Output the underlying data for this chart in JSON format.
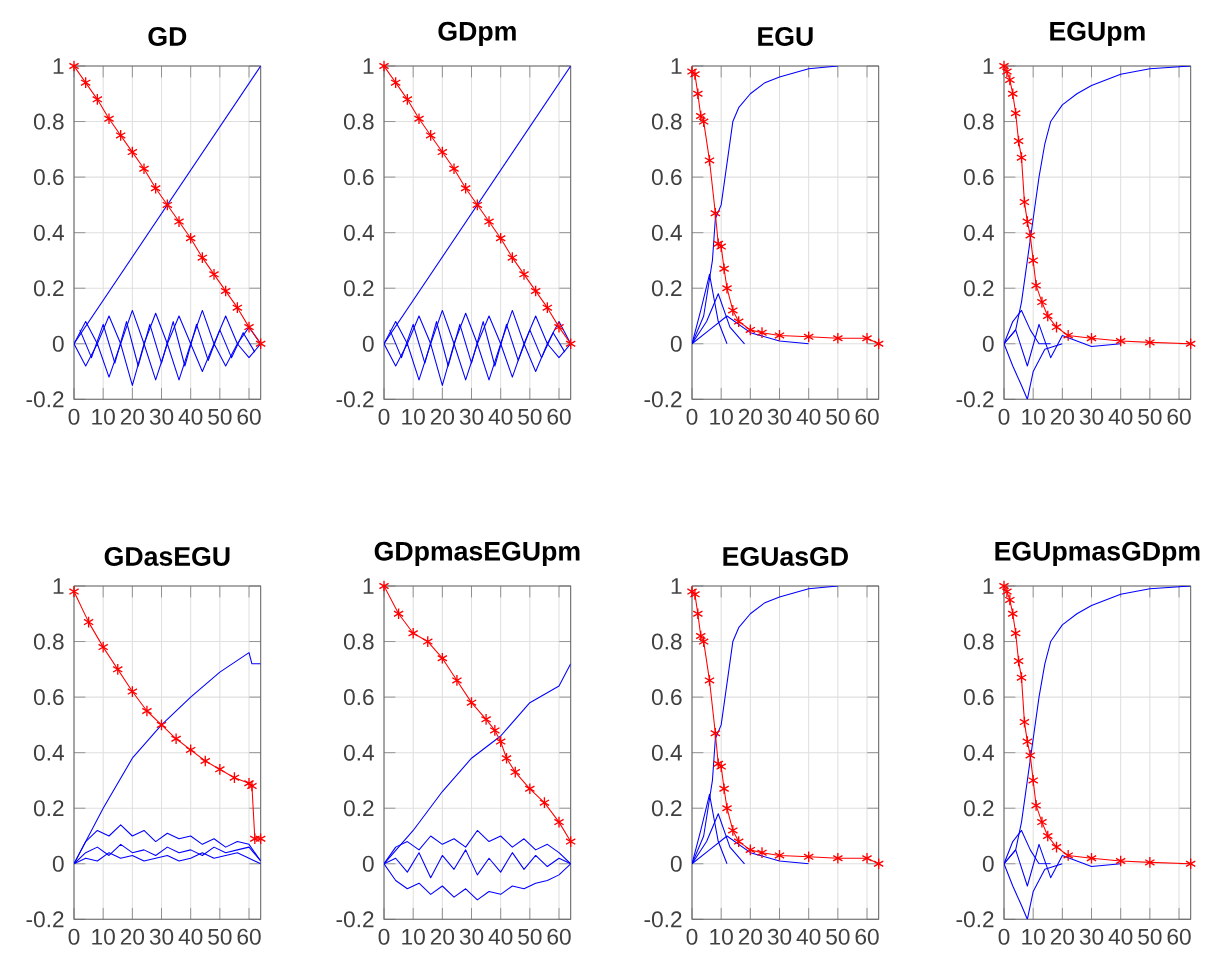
{
  "chart_data": [
    {
      "type": "line",
      "title": "GD",
      "xlim": [
        0,
        64
      ],
      "ylim": [
        -0.2,
        1
      ],
      "xticks": [
        0,
        10,
        20,
        30,
        40,
        50,
        60
      ],
      "yticks": [
        -0.2,
        0,
        0.2,
        0.4,
        0.6,
        0.8,
        1
      ],
      "grid": true,
      "series": [
        {
          "color": "#0000ff",
          "marker": "none",
          "x": [
            0,
            4,
            8,
            12,
            16,
            20,
            24,
            28,
            32,
            36,
            40,
            44,
            48,
            52,
            56,
            60,
            64
          ],
          "values": [
            0,
            0.08,
            0,
            0.1,
            0,
            0.12,
            0,
            0.11,
            0,
            0.1,
            0,
            0.12,
            0,
            0.1,
            0,
            0.06,
            0
          ]
        },
        {
          "color": "#0000ff",
          "marker": "none",
          "x": [
            0,
            4,
            8,
            12,
            16,
            20,
            24,
            28,
            32,
            36,
            40,
            44,
            48,
            52,
            56,
            60,
            64
          ],
          "values": [
            0,
            -0.08,
            0,
            -0.12,
            0,
            -0.15,
            0,
            -0.13,
            0,
            -0.13,
            0,
            -0.1,
            0,
            -0.08,
            0,
            -0.05,
            0
          ]
        },
        {
          "color": "#0000ff",
          "marker": "none",
          "x": [
            2,
            6,
            10,
            14,
            18,
            22,
            26,
            30,
            34,
            38,
            42,
            46,
            50,
            54,
            58,
            62
          ],
          "values": [
            0.05,
            -0.05,
            0.07,
            -0.07,
            0.08,
            -0.08,
            0.07,
            -0.07,
            0.08,
            -0.08,
            0.07,
            -0.06,
            0.05,
            -0.05,
            0.04,
            -0.03
          ]
        },
        {
          "color": "#0000ff",
          "marker": "none",
          "x": [
            0,
            64
          ],
          "values": [
            0,
            1
          ]
        },
        {
          "color": "#ff0000",
          "marker": "cross",
          "x": [
            0,
            4,
            8,
            12,
            16,
            20,
            24,
            28,
            32,
            36,
            40,
            44,
            48,
            52,
            56,
            60,
            64
          ],
          "values": [
            1,
            0.94,
            0.88,
            0.81,
            0.75,
            0.69,
            0.63,
            0.56,
            0.5,
            0.44,
            0.38,
            0.31,
            0.25,
            0.19,
            0.13,
            0.06,
            0
          ]
        }
      ]
    },
    {
      "type": "line",
      "title": "GDpm",
      "xlim": [
        0,
        64
      ],
      "ylim": [
        -0.2,
        1
      ],
      "xticks": [
        0,
        10,
        20,
        30,
        40,
        50,
        60
      ],
      "yticks": [
        -0.2,
        0,
        0.2,
        0.4,
        0.6,
        0.8,
        1
      ],
      "grid": true,
      "series": [
        {
          "color": "#0000ff",
          "marker": "none",
          "x": [
            0,
            4,
            8,
            12,
            16,
            20,
            24,
            28,
            32,
            36,
            40,
            44,
            48,
            52,
            56,
            60,
            64
          ],
          "values": [
            0,
            0.08,
            0,
            0.1,
            0,
            0.12,
            0,
            0.11,
            0,
            0.1,
            0,
            0.12,
            0,
            0.1,
            0,
            0.08,
            0
          ]
        },
        {
          "color": "#0000ff",
          "marker": "none",
          "x": [
            0,
            4,
            8,
            12,
            16,
            20,
            24,
            28,
            32,
            36,
            40,
            44,
            48,
            52,
            56,
            60,
            64
          ],
          "values": [
            0,
            -0.08,
            0,
            -0.13,
            0,
            -0.15,
            0,
            -0.13,
            0,
            -0.13,
            0,
            -0.12,
            0,
            -0.1,
            0,
            -0.05,
            0
          ]
        },
        {
          "color": "#0000ff",
          "marker": "none",
          "x": [
            2,
            6,
            10,
            14,
            18,
            22,
            26,
            30,
            34,
            38,
            42,
            46,
            50,
            54,
            58,
            62
          ],
          "values": [
            0.05,
            -0.05,
            0.07,
            -0.07,
            0.08,
            -0.08,
            0.07,
            -0.07,
            0.08,
            -0.08,
            0.07,
            -0.06,
            0.05,
            -0.05,
            0.04,
            -0.03
          ]
        },
        {
          "color": "#0000ff",
          "marker": "none",
          "x": [
            0,
            64
          ],
          "values": [
            0,
            1
          ]
        },
        {
          "color": "#ff0000",
          "marker": "cross",
          "x": [
            0,
            4,
            8,
            12,
            16,
            20,
            24,
            28,
            32,
            36,
            40,
            44,
            48,
            52,
            56,
            60,
            64
          ],
          "values": [
            1,
            0.94,
            0.88,
            0.81,
            0.75,
            0.69,
            0.63,
            0.56,
            0.5,
            0.44,
            0.38,
            0.31,
            0.25,
            0.19,
            0.13,
            0.06,
            0
          ]
        }
      ]
    },
    {
      "type": "line",
      "title": "EGU",
      "xlim": [
        0,
        64
      ],
      "ylim": [
        -0.2,
        1
      ],
      "xticks": [
        0,
        10,
        20,
        30,
        40,
        50,
        60
      ],
      "yticks": [
        -0.2,
        0,
        0.2,
        0.4,
        0.6,
        0.8,
        1
      ],
      "grid": true,
      "series": [
        {
          "color": "#0000ff",
          "marker": "none",
          "x": [
            0,
            3,
            6,
            9,
            12
          ],
          "values": [
            0,
            0.12,
            0.25,
            0.08,
            0
          ]
        },
        {
          "color": "#0000ff",
          "marker": "none",
          "x": [
            0,
            5,
            9,
            13,
            18
          ],
          "values": [
            0,
            0.08,
            0.18,
            0.06,
            0
          ]
        },
        {
          "color": "#0000ff",
          "marker": "none",
          "x": [
            0,
            6,
            12,
            20,
            30,
            40
          ],
          "values": [
            0,
            0.05,
            0.1,
            0.04,
            0.01,
            0
          ]
        },
        {
          "color": "#0000ff",
          "marker": "none",
          "x": [
            0,
            4,
            7,
            8,
            10,
            12,
            14,
            16,
            20,
            25,
            30,
            40,
            50
          ],
          "values": [
            0,
            0.1,
            0.3,
            0.45,
            0.5,
            0.65,
            0.8,
            0.85,
            0.9,
            0.94,
            0.96,
            0.99,
            1
          ]
        },
        {
          "color": "#ff0000",
          "marker": "cross",
          "x": [
            0,
            1,
            2,
            3,
            4,
            6,
            8,
            9,
            10,
            11,
            12,
            14,
            16,
            20,
            24,
            30,
            40,
            50,
            60,
            64
          ],
          "values": [
            0.98,
            0.97,
            0.9,
            0.82,
            0.8,
            0.66,
            0.47,
            0.36,
            0.35,
            0.27,
            0.2,
            0.12,
            0.08,
            0.05,
            0.04,
            0.03,
            0.025,
            0.02,
            0.02,
            0
          ]
        }
      ]
    },
    {
      "type": "line",
      "title": "EGUpm",
      "xlim": [
        0,
        64
      ],
      "ylim": [
        -0.2,
        1
      ],
      "xticks": [
        0,
        10,
        20,
        30,
        40,
        50,
        60
      ],
      "yticks": [
        -0.2,
        0,
        0.2,
        0.4,
        0.6,
        0.8,
        1
      ],
      "grid": true,
      "series": [
        {
          "color": "#0000ff",
          "marker": "none",
          "x": [
            0,
            3,
            6,
            9,
            12,
            16
          ],
          "values": [
            0,
            0.08,
            0.12,
            0.05,
            0,
            0
          ]
        },
        {
          "color": "#0000ff",
          "marker": "none",
          "x": [
            0,
            3,
            6,
            8,
            10,
            14,
            20
          ],
          "values": [
            0,
            -0.08,
            -0.15,
            -0.2,
            -0.1,
            -0.02,
            0
          ]
        },
        {
          "color": "#0000ff",
          "marker": "none",
          "x": [
            0,
            4,
            8,
            12,
            16,
            20,
            30,
            40
          ],
          "values": [
            0,
            0.05,
            -0.08,
            0.07,
            -0.05,
            0.03,
            -0.01,
            0
          ]
        },
        {
          "color": "#0000ff",
          "marker": "none",
          "x": [
            0,
            4,
            6,
            8,
            10,
            12,
            14,
            16,
            20,
            25,
            30,
            40,
            50,
            64
          ],
          "values": [
            0,
            0.05,
            0.15,
            0.3,
            0.45,
            0.6,
            0.72,
            0.8,
            0.86,
            0.9,
            0.93,
            0.97,
            0.99,
            1
          ]
        },
        {
          "color": "#ff0000",
          "marker": "cross",
          "x": [
            0,
            1,
            2,
            3,
            4,
            5,
            6,
            7,
            8,
            9,
            10,
            11,
            13,
            15,
            18,
            22,
            30,
            40,
            50,
            64
          ],
          "values": [
            1,
            0.98,
            0.95,
            0.9,
            0.83,
            0.73,
            0.67,
            0.51,
            0.44,
            0.39,
            0.3,
            0.21,
            0.15,
            0.1,
            0.06,
            0.03,
            0.02,
            0.01,
            0.005,
            0
          ]
        }
      ]
    },
    {
      "type": "line",
      "title": "GDasEGU",
      "xlim": [
        0,
        64
      ],
      "ylim": [
        -0.2,
        1
      ],
      "xticks": [
        0,
        10,
        20,
        30,
        40,
        50,
        60
      ],
      "yticks": [
        -0.2,
        0,
        0.2,
        0.4,
        0.6,
        0.8,
        1
      ],
      "grid": true,
      "series": [
        {
          "color": "#0000ff",
          "marker": "none",
          "x": [
            0,
            4,
            8,
            12,
            16,
            20,
            24,
            28,
            32,
            36,
            40,
            44,
            48,
            52,
            56,
            60,
            64
          ],
          "values": [
            0,
            0.08,
            0.12,
            0.1,
            0.14,
            0.1,
            0.12,
            0.08,
            0.11,
            0.09,
            0.1,
            0.07,
            0.09,
            0.06,
            0.08,
            0.07,
            0.01
          ]
        },
        {
          "color": "#0000ff",
          "marker": "none",
          "x": [
            0,
            4,
            8,
            12,
            16,
            20,
            24,
            28,
            32,
            36,
            40,
            44,
            48,
            52,
            56,
            60,
            64
          ],
          "values": [
            0,
            0.04,
            0.06,
            0.03,
            0.07,
            0.04,
            0.05,
            0.03,
            0.06,
            0.04,
            0.05,
            0.03,
            0.06,
            0.04,
            0.05,
            0.06,
            0.01
          ]
        },
        {
          "color": "#0000ff",
          "marker": "none",
          "x": [
            0,
            4,
            8,
            12,
            16,
            20,
            24,
            28,
            32,
            36,
            40,
            44,
            48,
            52,
            56,
            60,
            64
          ],
          "values": [
            0,
            0.02,
            0.01,
            0.04,
            0.02,
            0.03,
            0.01,
            0.02,
            0.03,
            0.01,
            0.02,
            0.04,
            0.02,
            0.03,
            0.04,
            0.02,
            0
          ]
        },
        {
          "color": "#0000ff",
          "marker": "none",
          "x": [
            0,
            10,
            20,
            30,
            40,
            50,
            60,
            61,
            64
          ],
          "values": [
            0,
            0.2,
            0.38,
            0.5,
            0.6,
            0.69,
            0.76,
            0.72,
            0.72
          ]
        },
        {
          "color": "#ff0000",
          "marker": "cross",
          "x": [
            0,
            5,
            10,
            15,
            20,
            25,
            30,
            35,
            40,
            45,
            50,
            55,
            60,
            61,
            62,
            64
          ],
          "values": [
            0.98,
            0.87,
            0.78,
            0.7,
            0.62,
            0.55,
            0.5,
            0.45,
            0.41,
            0.37,
            0.34,
            0.31,
            0.29,
            0.28,
            0.09,
            0.09
          ]
        }
      ]
    },
    {
      "type": "line",
      "title": "GDpmasEGUpm",
      "xlim": [
        0,
        64
      ],
      "ylim": [
        -0.2,
        1
      ],
      "xticks": [
        0,
        10,
        20,
        30,
        40,
        50,
        60
      ],
      "yticks": [
        -0.2,
        0,
        0.2,
        0.4,
        0.6,
        0.8,
        1
      ],
      "grid": true,
      "series": [
        {
          "color": "#0000ff",
          "marker": "none",
          "x": [
            0,
            4,
            8,
            12,
            16,
            20,
            24,
            28,
            32,
            36,
            40,
            44,
            48,
            52,
            56,
            60,
            64
          ],
          "values": [
            0,
            0.06,
            0.08,
            0.05,
            0.1,
            0.07,
            0.09,
            0.06,
            0.12,
            0.08,
            0.1,
            0.06,
            0.09,
            0.05,
            0.07,
            0.04,
            0
          ]
        },
        {
          "color": "#0000ff",
          "marker": "none",
          "x": [
            0,
            4,
            8,
            12,
            16,
            20,
            24,
            28,
            32,
            36,
            40,
            44,
            48,
            52,
            56,
            60,
            64
          ],
          "values": [
            0,
            -0.06,
            -0.09,
            -0.07,
            -0.11,
            -0.08,
            -0.12,
            -0.09,
            -0.13,
            -0.1,
            -0.11,
            -0.08,
            -0.09,
            -0.07,
            -0.06,
            -0.04,
            0
          ]
        },
        {
          "color": "#0000ff",
          "marker": "none",
          "x": [
            0,
            4,
            8,
            12,
            16,
            20,
            24,
            28,
            32,
            36,
            40,
            44,
            48,
            52,
            56,
            60,
            64
          ],
          "values": [
            0,
            0.02,
            -0.03,
            0.04,
            -0.05,
            0.03,
            -0.02,
            0.05,
            -0.04,
            0.02,
            -0.03,
            0.04,
            -0.02,
            0.03,
            -0.01,
            0.02,
            0
          ]
        },
        {
          "color": "#0000ff",
          "marker": "none",
          "x": [
            0,
            10,
            20,
            30,
            40,
            50,
            60,
            64
          ],
          "values": [
            0,
            0.12,
            0.26,
            0.38,
            0.46,
            0.58,
            0.64,
            0.72
          ]
        },
        {
          "color": "#ff0000",
          "marker": "cross",
          "x": [
            0,
            5,
            10,
            15,
            20,
            25,
            30,
            35,
            38,
            40,
            42,
            45,
            50,
            55,
            60,
            64
          ],
          "values": [
            1,
            0.9,
            0.83,
            0.8,
            0.74,
            0.66,
            0.58,
            0.52,
            0.48,
            0.44,
            0.38,
            0.33,
            0.27,
            0.22,
            0.15,
            0.08
          ]
        }
      ]
    },
    {
      "type": "line",
      "title": "EGUasGD",
      "xlim": [
        0,
        64
      ],
      "ylim": [
        -0.2,
        1
      ],
      "xticks": [
        0,
        10,
        20,
        30,
        40,
        50,
        60
      ],
      "yticks": [
        -0.2,
        0,
        0.2,
        0.4,
        0.6,
        0.8,
        1
      ],
      "grid": true,
      "series": [
        {
          "color": "#0000ff",
          "marker": "none",
          "x": [
            0,
            3,
            6,
            9,
            12
          ],
          "values": [
            0,
            0.12,
            0.25,
            0.08,
            0
          ]
        },
        {
          "color": "#0000ff",
          "marker": "none",
          "x": [
            0,
            5,
            9,
            13,
            18
          ],
          "values": [
            0,
            0.08,
            0.18,
            0.06,
            0
          ]
        },
        {
          "color": "#0000ff",
          "marker": "none",
          "x": [
            0,
            6,
            12,
            20,
            30,
            40
          ],
          "values": [
            0,
            0.05,
            0.1,
            0.04,
            0.01,
            0
          ]
        },
        {
          "color": "#0000ff",
          "marker": "none",
          "x": [
            0,
            4,
            7,
            8,
            10,
            12,
            14,
            16,
            20,
            25,
            30,
            40,
            50
          ],
          "values": [
            0,
            0.1,
            0.3,
            0.45,
            0.5,
            0.65,
            0.8,
            0.85,
            0.9,
            0.94,
            0.96,
            0.99,
            1
          ]
        },
        {
          "color": "#ff0000",
          "marker": "cross",
          "x": [
            0,
            1,
            2,
            3,
            4,
            6,
            8,
            9,
            10,
            11,
            12,
            14,
            16,
            20,
            24,
            30,
            40,
            50,
            60,
            64
          ],
          "values": [
            0.98,
            0.97,
            0.9,
            0.82,
            0.8,
            0.66,
            0.47,
            0.36,
            0.35,
            0.27,
            0.2,
            0.12,
            0.08,
            0.05,
            0.04,
            0.03,
            0.025,
            0.02,
            0.02,
            0
          ]
        }
      ]
    },
    {
      "type": "line",
      "title": "EGUpmasGDpm",
      "xlim": [
        0,
        64
      ],
      "ylim": [
        -0.2,
        1
      ],
      "xticks": [
        0,
        10,
        20,
        30,
        40,
        50,
        60
      ],
      "yticks": [
        -0.2,
        0,
        0.2,
        0.4,
        0.6,
        0.8,
        1
      ],
      "grid": true,
      "series": [
        {
          "color": "#0000ff",
          "marker": "none",
          "x": [
            0,
            3,
            6,
            9,
            12,
            16
          ],
          "values": [
            0,
            0.08,
            0.12,
            0.05,
            0,
            0
          ]
        },
        {
          "color": "#0000ff",
          "marker": "none",
          "x": [
            0,
            3,
            6,
            8,
            10,
            14,
            20
          ],
          "values": [
            0,
            -0.08,
            -0.15,
            -0.2,
            -0.1,
            -0.02,
            0
          ]
        },
        {
          "color": "#0000ff",
          "marker": "none",
          "x": [
            0,
            4,
            8,
            12,
            16,
            20,
            30,
            40
          ],
          "values": [
            0,
            0.05,
            -0.08,
            0.07,
            -0.05,
            0.03,
            -0.01,
            0
          ]
        },
        {
          "color": "#0000ff",
          "marker": "none",
          "x": [
            0,
            4,
            6,
            8,
            10,
            12,
            14,
            16,
            20,
            25,
            30,
            40,
            50,
            64
          ],
          "values": [
            0,
            0.05,
            0.15,
            0.3,
            0.45,
            0.6,
            0.72,
            0.8,
            0.86,
            0.9,
            0.93,
            0.97,
            0.99,
            1
          ]
        },
        {
          "color": "#ff0000",
          "marker": "cross",
          "x": [
            0,
            1,
            2,
            3,
            4,
            5,
            6,
            7,
            8,
            9,
            10,
            11,
            13,
            15,
            18,
            22,
            30,
            40,
            50,
            64
          ],
          "values": [
            1,
            0.98,
            0.95,
            0.9,
            0.83,
            0.73,
            0.67,
            0.51,
            0.44,
            0.39,
            0.3,
            0.21,
            0.15,
            0.1,
            0.06,
            0.03,
            0.02,
            0.01,
            0.005,
            0
          ]
        }
      ]
    }
  ]
}
